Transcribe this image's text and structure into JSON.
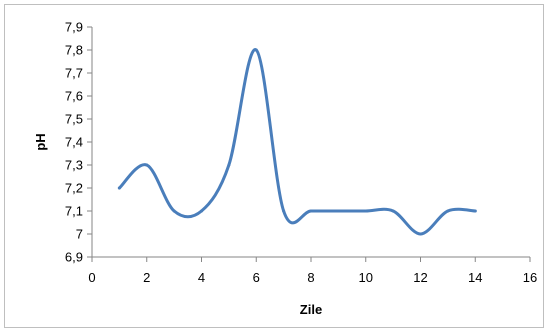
{
  "chart_data": {
    "type": "line",
    "title": "",
    "xlabel": "Zile",
    "ylabel": "pH",
    "xlim": [
      0,
      16
    ],
    "ylim": [
      6.9,
      7.9
    ],
    "x_ticks": [
      "0",
      "2",
      "4",
      "6",
      "8",
      "10",
      "12",
      "14",
      "16"
    ],
    "y_ticks": [
      "6,9",
      "7",
      "7,1",
      "7,2",
      "7,3",
      "7,4",
      "7,5",
      "7,6",
      "7,7",
      "7,8",
      "7,9"
    ],
    "grid": false,
    "legend": "none",
    "smooth": true,
    "series": [
      {
        "x": [
          1,
          2,
          3,
          4,
          5,
          6,
          7,
          8,
          9,
          10,
          11,
          12,
          13,
          14
        ],
        "y": [
          7.2,
          7.3,
          7.1,
          7.1,
          7.3,
          7.8,
          7.1,
          7.1,
          7.1,
          7.1,
          7.1,
          7.0,
          7.1,
          7.1
        ],
        "color": "#4a7ebb"
      }
    ]
  }
}
